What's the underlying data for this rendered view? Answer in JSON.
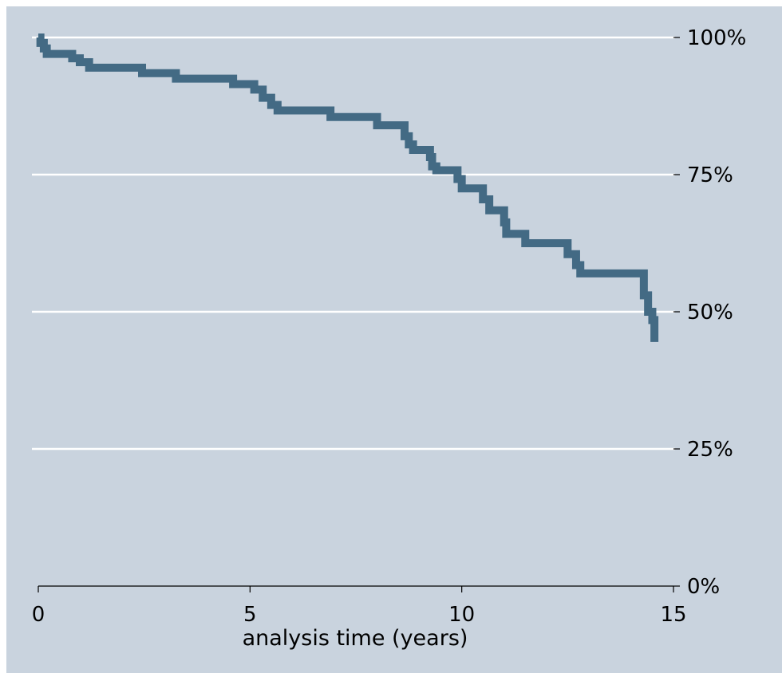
{
  "chart_data": {
    "type": "line",
    "line_style": "step",
    "xlabel": "analysis time (years)",
    "ylabel": "",
    "title": "",
    "xlim": [
      0,
      15
    ],
    "ylim": [
      0,
      1
    ],
    "x_ticks": [
      {
        "value": 0,
        "label": "0"
      },
      {
        "value": 5,
        "label": "5"
      },
      {
        "value": 10,
        "label": "10"
      },
      {
        "value": 15,
        "label": "15"
      }
    ],
    "y_ticks": [
      {
        "value": 0,
        "label": "0%"
      },
      {
        "value": 0.25,
        "label": "25%"
      },
      {
        "value": 0.5,
        "label": "50%"
      },
      {
        "value": 0.75,
        "label": "75%"
      },
      {
        "value": 1,
        "label": "100%"
      }
    ],
    "y_axis_position": "right",
    "grid": true,
    "colors": {
      "background": "#c9d3de",
      "line": "#436a84",
      "gridline": "#ffffff"
    },
    "series": [
      {
        "points": [
          [
            0,
            1.0
          ],
          [
            0.05,
            0.99
          ],
          [
            0.13,
            0.98
          ],
          [
            0.2,
            0.97
          ],
          [
            0.8,
            0.962
          ],
          [
            0.98,
            0.955
          ],
          [
            1.2,
            0.945
          ],
          [
            2.45,
            0.935
          ],
          [
            3.25,
            0.925
          ],
          [
            4.6,
            0.915
          ],
          [
            5.1,
            0.905
          ],
          [
            5.3,
            0.89
          ],
          [
            5.5,
            0.877
          ],
          [
            5.65,
            0.867
          ],
          [
            6.9,
            0.855
          ],
          [
            8.0,
            0.84
          ],
          [
            8.65,
            0.82
          ],
          [
            8.75,
            0.805
          ],
          [
            8.85,
            0.795
          ],
          [
            9.25,
            0.782
          ],
          [
            9.3,
            0.765
          ],
          [
            9.4,
            0.758
          ],
          [
            9.9,
            0.742
          ],
          [
            10.0,
            0.725
          ],
          [
            10.5,
            0.705
          ],
          [
            10.65,
            0.685
          ],
          [
            11.0,
            0.663
          ],
          [
            11.05,
            0.642
          ],
          [
            11.5,
            0.625
          ],
          [
            12.5,
            0.605
          ],
          [
            12.7,
            0.585
          ],
          [
            12.8,
            0.57
          ],
          [
            14.3,
            0.53
          ],
          [
            14.4,
            0.5
          ],
          [
            14.5,
            0.485
          ],
          [
            14.55,
            0.445
          ]
        ]
      }
    ]
  }
}
